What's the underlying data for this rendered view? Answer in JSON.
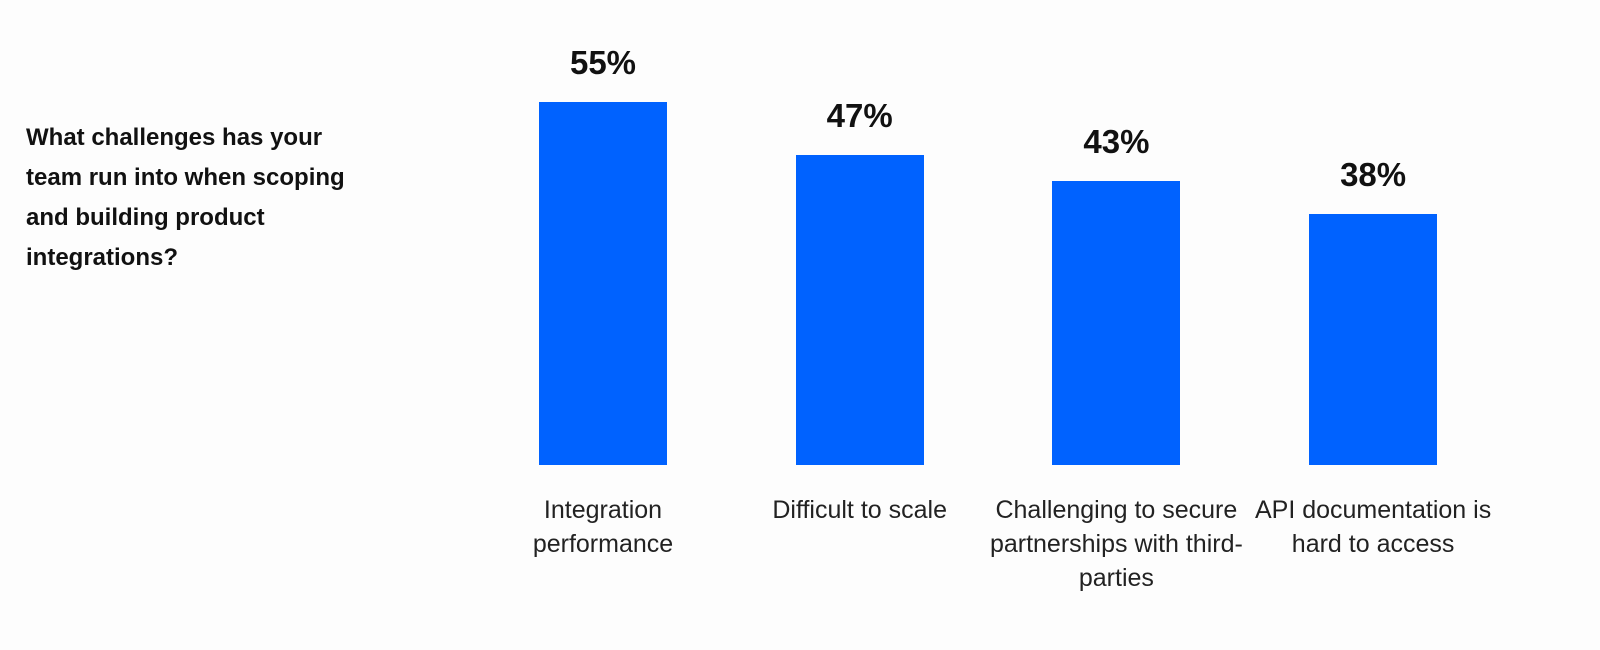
{
  "chart_data": {
    "type": "bar",
    "title": "What challenges has your team run into when scoping and building product integrations?",
    "categories": [
      "Integration performance",
      "Difficult to scale",
      "Challenging to secure partnerships with third-parties",
      "API documentation is hard to access"
    ],
    "values": [
      55,
      47,
      43,
      38
    ],
    "value_labels": [
      "55%",
      "47%",
      "43%",
      "38%"
    ],
    "color": "#0062ff"
  }
}
